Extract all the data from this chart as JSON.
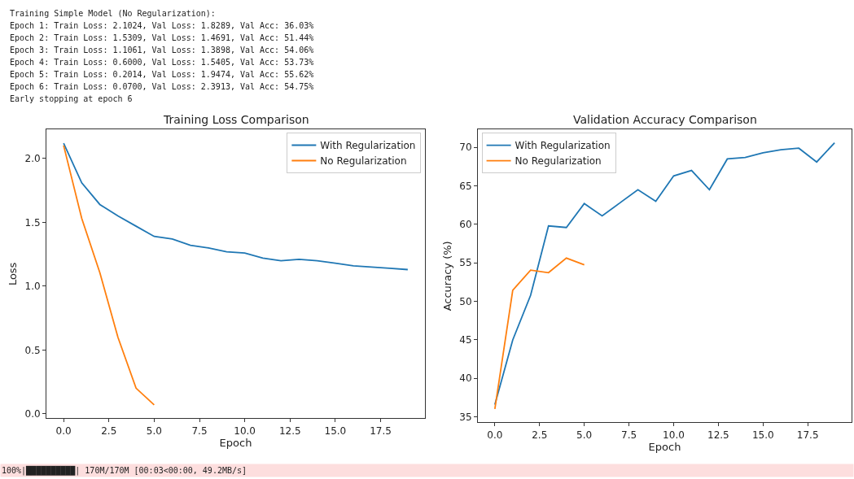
{
  "chart_data": [
    {
      "type": "line",
      "title": "Training Loss Comparison",
      "xlabel": "Epoch",
      "ylabel": "Loss",
      "x": [
        0,
        1,
        2,
        3,
        4,
        5,
        6,
        7,
        8,
        9,
        10,
        11,
        12,
        13,
        14,
        15,
        16,
        17,
        18,
        19
      ],
      "series": [
        {
          "name": "With Regularization",
          "color": "#1f77b4",
          "values": [
            2.12,
            1.81,
            1.64,
            1.55,
            1.47,
            1.39,
            1.37,
            1.32,
            1.3,
            1.27,
            1.26,
            1.22,
            1.2,
            1.21,
            1.2,
            1.18,
            1.16,
            1.15,
            1.14,
            1.13
          ]
        },
        {
          "name": "No Regularization",
          "color": "#ff7f0e",
          "x": [
            0,
            1,
            2,
            3,
            4,
            5
          ],
          "values": [
            2.1024,
            1.5309,
            1.1061,
            0.6,
            0.2014,
            0.07
          ]
        }
      ],
      "xlim": [
        -0.95,
        19.95
      ],
      "ylim": [
        -0.034,
        2.226
      ],
      "xticks": [
        {
          "value": 0,
          "label": "0.0"
        },
        {
          "value": 2.5,
          "label": "2.5"
        },
        {
          "value": 5,
          "label": "5.0"
        },
        {
          "value": 7.5,
          "label": "7.5"
        },
        {
          "value": 10,
          "label": "10.0"
        },
        {
          "value": 12.5,
          "label": "12.5"
        },
        {
          "value": 15,
          "label": "15.0"
        },
        {
          "value": 17.5,
          "label": "17.5"
        }
      ],
      "yticks": [
        {
          "value": 0,
          "label": "0.0"
        },
        {
          "value": 0.5,
          "label": "0.5"
        },
        {
          "value": 1,
          "label": "1.0"
        },
        {
          "value": 1.5,
          "label": "1.5"
        },
        {
          "value": 2,
          "label": "2.0"
        }
      ],
      "legend": "top right",
      "line_style": "solid",
      "marker": "none",
      "annotations": [
        "Training Simple Model (No Regularization):",
        "Epoch 1: Train Loss: 2.1024, Val Loss: 1.8289, Val Acc: 36.03%",
        "Epoch 2: Train Loss: 1.5309, Val Loss: 1.4691, Val Acc: 51.44%",
        "Epoch 3: Train Loss: 1.1061, Val Loss: 1.3898, Val Acc: 54.06%",
        "Epoch 4: Train Loss: 0.6000, Val Loss: 1.5405, Val Acc: 53.73%",
        "Epoch 5: Train Loss: 0.2014, Val Loss: 1.9474, Val Acc: 55.62%",
        "Epoch 6: Train Loss: 0.0700, Val Loss: 2.3913, Val Acc: 54.75%",
        "Early stopping at epoch 6"
      ]
    },
    {
      "type": "line",
      "title": "Validation Accuracy Comparison",
      "xlabel": "Epoch",
      "ylabel": "Accuracy (%)",
      "x": [
        0,
        1,
        2,
        3,
        4,
        5,
        6,
        7,
        8,
        9,
        10,
        11,
        12,
        13,
        14,
        15,
        16,
        17,
        18,
        19
      ],
      "series": [
        {
          "name": "With Regularization",
          "color": "#1f77b4",
          "values": [
            36.6,
            45.0,
            50.8,
            59.8,
            59.6,
            62.7,
            61.1,
            62.8,
            64.5,
            63.0,
            66.3,
            67.0,
            64.5,
            68.5,
            68.7,
            69.3,
            69.7,
            69.9,
            68.1,
            70.6
          ]
        },
        {
          "name": "No Regularization",
          "color": "#ff7f0e",
          "x": [
            0,
            1,
            2,
            3,
            4,
            5
          ],
          "values": [
            36.03,
            51.44,
            54.06,
            53.73,
            55.62,
            54.75
          ]
        }
      ],
      "xlim": [
        -0.95,
        19.95
      ],
      "ylim": [
        34.3,
        72.3
      ],
      "xticks": [
        {
          "value": 0,
          "label": "0.0"
        },
        {
          "value": 2.5,
          "label": "2.5"
        },
        {
          "value": 5,
          "label": "5.0"
        },
        {
          "value": 7.5,
          "label": "7.5"
        },
        {
          "value": 10,
          "label": "10.0"
        },
        {
          "value": 12.5,
          "label": "12.5"
        },
        {
          "value": 15,
          "label": "15.0"
        },
        {
          "value": 17.5,
          "label": "17.5"
        }
      ],
      "yticks": [
        35,
        40,
        45,
        50,
        55,
        60,
        65,
        70
      ],
      "legend": "top left",
      "line_style": "solid",
      "marker": "none",
      "annotations": [
        "100%|██████████| 170M/170M [00:03<00:00, 49.2MB/s]"
      ]
    }
  ]
}
